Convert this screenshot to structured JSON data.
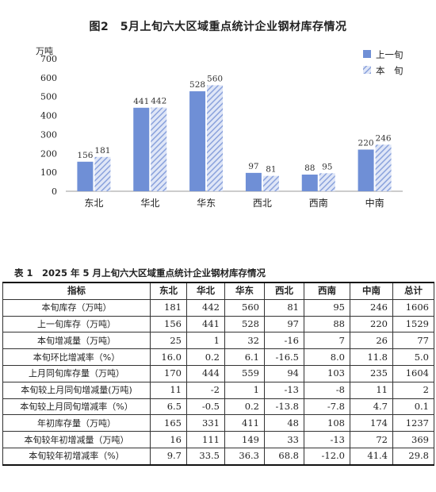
{
  "figure_title": "图2　5月上旬六大区域重点统计企业钢材库存情况",
  "table_title": "表 1　2025 年 5 月上旬六大区域重点统计企业钢材库存情况",
  "chart_data": {
    "type": "bar",
    "title": "图2　5月上旬六大区域重点统计企业钢材库存情况",
    "ylabel": "万吨",
    "ylim": [
      0,
      700
    ],
    "yticks": [
      "0",
      "100",
      "200",
      "300",
      "400",
      "500",
      "600",
      "700"
    ],
    "categories": [
      "东北",
      "华北",
      "华东",
      "西北",
      "西南",
      "中南"
    ],
    "series": [
      {
        "name": "上一旬",
        "values": [
          156,
          441,
          528,
          97,
          88,
          220
        ],
        "color": "#6f8fd6",
        "pattern": "solid"
      },
      {
        "name": "本　旬",
        "values": [
          181,
          442,
          560,
          81,
          95,
          246
        ],
        "color": "#8fa8e0",
        "pattern": "hatched"
      }
    ],
    "legend": "top-right",
    "grid": false
  },
  "table": {
    "headers": [
      "指标",
      "东北",
      "华北",
      "华东",
      "西北",
      "西南",
      "中南",
      "总计"
    ],
    "rows": [
      [
        "本旬库存（万吨）",
        "181",
        "442",
        "560",
        "81",
        "95",
        "246",
        "1606"
      ],
      [
        "上一旬库存（万吨）",
        "156",
        "441",
        "528",
        "97",
        "88",
        "220",
        "1529"
      ],
      [
        "本旬增减量（万吨）",
        "25",
        "1",
        "32",
        "-16",
        "7",
        "26",
        "77"
      ],
      [
        "本旬环比增减率（%）",
        "16.0",
        "0.2",
        "6.1",
        "-16.5",
        "8.0",
        "11.8",
        "5.0"
      ],
      [
        "上月同旬库存量（万吨）",
        "170",
        "444",
        "559",
        "94",
        "103",
        "235",
        "1604"
      ],
      [
        "本旬较上月同旬增减量(万吨)",
        "11",
        "-2",
        "1",
        "-13",
        "-8",
        "11",
        "2"
      ],
      [
        "本旬较上月同旬增减率（%）",
        "6.5",
        "-0.5",
        "0.2",
        "-13.8",
        "-7.8",
        "4.7",
        "0.1"
      ],
      [
        "年初库存量（万吨）",
        "165",
        "331",
        "411",
        "48",
        "108",
        "174",
        "1237"
      ],
      [
        "本旬较年初增减量（万吨）",
        "16",
        "111",
        "149",
        "33",
        "-13",
        "72",
        "369"
      ],
      [
        "本旬较年初增减率（%）",
        "9.7",
        "33.5",
        "36.3",
        "68.8",
        "-12.0",
        "41.4",
        "29.8"
      ]
    ]
  }
}
